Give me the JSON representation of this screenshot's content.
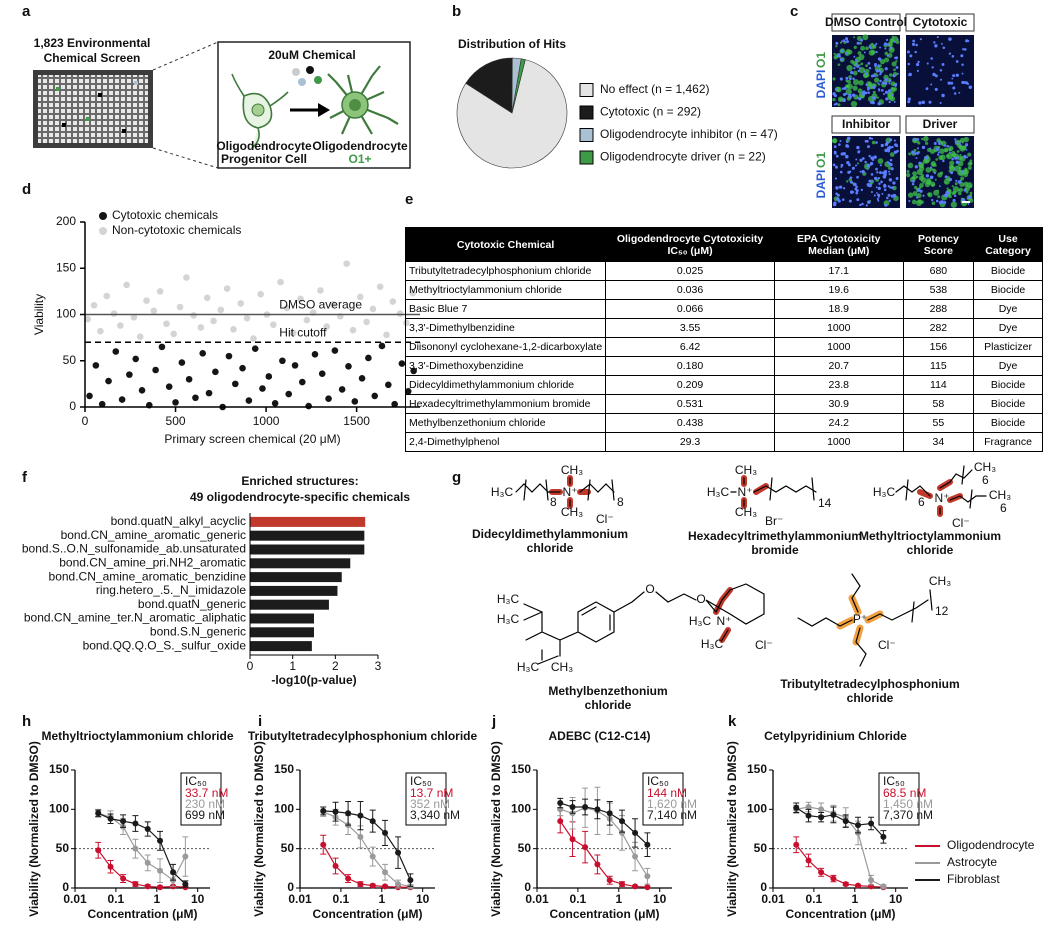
{
  "panel_labels": [
    "a",
    "b",
    "c",
    "d",
    "e",
    "f",
    "g",
    "h",
    "i",
    "j",
    "k"
  ],
  "panel_a": {
    "screen_title": [
      "1,823 Environmental",
      "Chemical Screen"
    ],
    "chemical": "20uM Chemical",
    "progenitor": [
      "Oligodendrocyte",
      "Progenitor Cell"
    ],
    "mature": [
      "Oligodendrocyte",
      "O1+"
    ]
  },
  "panel_c": {
    "headers": [
      "DMSO Control",
      "Cytotoxic",
      "Inhibitor",
      "Driver"
    ],
    "stain_labels": [
      "DAPI",
      "O1"
    ]
  },
  "table": {
    "header": [
      "Cytotoxic Chemical",
      "Oligodendrocyte Cytotoxicity IC₅₀ (μM)",
      "EPA Cytotoxicity Median (μM)",
      "Potency Score",
      "Use Category"
    ],
    "rows": [
      [
        "Tributyltetradecylphosphonium chloride",
        "0.025",
        "17.1",
        "680",
        "Biocide"
      ],
      [
        "Methyltrioctylammonium chloride",
        "0.036",
        "19.6",
        "538",
        "Biocide"
      ],
      [
        "Basic Blue 7",
        "0.066",
        "18.9",
        "288",
        "Dye"
      ],
      [
        "3,3'-Dimethylbenzidine",
        "3.55",
        "1000",
        "282",
        "Dye"
      ],
      [
        "Diisononyl cyclohexane-1,2-dicarboxylate",
        "6.42",
        "1000",
        "156",
        "Plasticizer"
      ],
      [
        "3,3'-Dimethoxybenzidine",
        "0.180",
        "20.7",
        "115",
        "Dye"
      ],
      [
        "Didecyldimethylammonium chloride",
        "0.209",
        "23.8",
        "114",
        "Biocide"
      ],
      [
        "Hexadecyltrimethylammonium bromide",
        "0.531",
        "30.9",
        "58",
        "Biocide"
      ],
      [
        "Methylbenzethonium chloride",
        "0.438",
        "24.2",
        "55",
        "Biocide"
      ],
      [
        "2,4-Dimethylphenol",
        "29.3",
        "1000",
        "34",
        "Fragrance"
      ]
    ]
  },
  "structures": [
    {
      "labels": [
        "H₃C",
        "8",
        "N⁺",
        "CH₃",
        "CH₃",
        "8",
        "Cl⁻"
      ],
      "name": [
        "Didecyldimethylammonium",
        "chloride"
      ]
    },
    {
      "labels": [
        "H₃C",
        "N⁺",
        "CH₃",
        "CH₃",
        "14",
        "Br⁻"
      ],
      "name": [
        "Hexadecyltrimethylammonium",
        "bromide"
      ]
    },
    {
      "labels": [
        "H₃C",
        "6",
        "N⁺",
        "CH₃",
        "6",
        "CH₃",
        "6",
        "Cl⁻"
      ],
      "name": [
        "Methyltrioctylammonium",
        "chloride"
      ]
    },
    {
      "labels": [
        "H₃C",
        "H₃C",
        "H₃C",
        "CH₃",
        "O",
        "O",
        "H₃C",
        "N⁺",
        "H₃C",
        "Cl⁻"
      ],
      "name": [
        "Methylbenzethonium",
        "chloride"
      ]
    },
    {
      "labels": [
        "P⁺",
        "CH₃",
        "12",
        "Cl⁻"
      ],
      "name": [
        "Tributyltetradecylphosphonium",
        "chloride"
      ]
    }
  ],
  "chart_data": [
    {
      "type": "pie",
      "title": "Distribution of Hits",
      "categories": [
        "No effect (n = 1,462)",
        "Cytotoxic (n = 292)",
        "Oligodendrocyte inhibitor (n = 47)",
        "Oligodendrocyte driver (n = 22)"
      ],
      "values": [
        1462,
        292,
        47,
        22
      ],
      "colors": [
        "#e4e4e4",
        "#1c1c1c",
        "#a9c1d3",
        "#3f9a48"
      ]
    },
    {
      "type": "scatter",
      "ylabel": "Viability",
      "xlabel": "Primary screen chemical (20 μM)",
      "xlim": [
        0,
        1850
      ],
      "ylim": [
        0,
        200
      ],
      "xticks": [
        0,
        500,
        1000,
        1500
      ],
      "yticks": [
        0,
        50,
        100,
        150,
        200
      ],
      "ref_lines": [
        {
          "value": 100,
          "label": "DMSO average",
          "style": "solid"
        },
        {
          "value": 70,
          "label": "Hit cutoff",
          "style": "dashed"
        }
      ],
      "series": [
        {
          "name": "Cytotoxic chemicals",
          "color": "#151515",
          "x": [
            25,
            60,
            95,
            130,
            170,
            205,
            245,
            280,
            315,
            355,
            390,
            425,
            465,
            500,
            535,
            575,
            610,
            650,
            685,
            720,
            760,
            795,
            830,
            870,
            905,
            940,
            980,
            1015,
            1050,
            1090,
            1125,
            1160,
            1200,
            1235,
            1270,
            1310,
            1345,
            1380,
            1420,
            1455,
            1490,
            1530,
            1565,
            1600,
            1640,
            1675,
            1710,
            1750,
            1785,
            1815
          ],
          "values": [
            12,
            45,
            3,
            28,
            60,
            8,
            35,
            52,
            18,
            2,
            40,
            65,
            22,
            5,
            48,
            30,
            10,
            58,
            15,
            38,
            0,
            55,
            25,
            42,
            7,
            63,
            20,
            33,
            4,
            50,
            14,
            45,
            27,
            1,
            57,
            36,
            9,
            61,
            19,
            44,
            6,
            31,
            53,
            12,
            66,
            24,
            3,
            47,
            17,
            39
          ]
        },
        {
          "name": "Non-cytotoxic chemicals",
          "color": "#d4d4d4",
          "x": [
            15,
            50,
            85,
            120,
            160,
            195,
            230,
            270,
            305,
            340,
            380,
            415,
            450,
            490,
            525,
            560,
            600,
            640,
            675,
            710,
            750,
            785,
            820,
            860,
            895,
            930,
            970,
            1005,
            1040,
            1080,
            1115,
            1150,
            1190,
            1225,
            1260,
            1300,
            1335,
            1370,
            1410,
            1445,
            1480,
            1520,
            1555,
            1590,
            1630,
            1665,
            1700,
            1740,
            1775,
            1810
          ],
          "values": [
            95,
            110,
            82,
            120,
            101,
            88,
            132,
            97,
            76,
            115,
            104,
            125,
            90,
            79,
            108,
            140,
            99,
            86,
            118,
            93,
            105,
            128,
            84,
            112,
            96,
            74,
            122,
            100,
            89,
            135,
            107,
            80,
            117,
            94,
            102,
            126,
            87,
            111,
            98,
            155,
            83,
            119,
            92,
            106,
            130,
            78,
            114,
            101,
            91,
            123
          ]
        }
      ]
    },
    {
      "type": "bar",
      "orientation": "horizontal",
      "title": [
        "Enriched structures:",
        "49 oligodendrocyte-specific chemicals"
      ],
      "xlabel": "-log10(p-value)",
      "xlim": [
        0,
        3
      ],
      "xticks": [
        0,
        1,
        2,
        3
      ],
      "categories": [
        "bond.quatN_alkyl_acyclic",
        "bond.CN_amine_aromatic_generic",
        "bond.S..O.N_sulfonamide_ab.unsaturated",
        "bond.CN_amine_pri.NH2_aromatic",
        "bond.CN_amine_aromatic_benzidine",
        "ring.hetero_.5._N_imidazole",
        "bond.quatN_generic",
        "bond.CN_amine_ter.N_aromatic_aliphatic",
        "bond.S.N_generic",
        "bond.QQ.Q.O_S._sulfur_oxide"
      ],
      "values": [
        2.7,
        2.68,
        2.68,
        2.35,
        2.15,
        2.05,
        1.85,
        1.5,
        1.5,
        1.45
      ],
      "colors": [
        "#c0392b",
        "#1c1c1c",
        "#1c1c1c",
        "#1c1c1c",
        "#1c1c1c",
        "#1c1c1c",
        "#1c1c1c",
        "#1c1c1c",
        "#1c1c1c",
        "#1c1c1c"
      ]
    },
    {
      "type": "line",
      "title": "Methyltrioctylammonium chloride",
      "xlabel": "Concentration (μM)",
      "ylabel": "Viability (Normalized to DMSO)",
      "log_x": true,
      "xlim": [
        0.01,
        20
      ],
      "xticks": [
        0.01,
        0.1,
        1,
        10
      ],
      "ylim": [
        0,
        150
      ],
      "yticks": [
        0,
        50,
        100,
        150
      ],
      "ref_line": 50,
      "ic50_title": "IC₅₀",
      "ic50_values": [
        "33.7 nM",
        "230 nM",
        "699 nM"
      ],
      "legend": false,
      "x": [
        0.037,
        0.074,
        0.15,
        0.3,
        0.6,
        1.2,
        2.5,
        5
      ],
      "series": [
        {
          "color": "#c8102e",
          "values": [
            48,
            27,
            12,
            5,
            2,
            1,
            2,
            1
          ],
          "errors": [
            10,
            8,
            5,
            3,
            2,
            1,
            1,
            1
          ]
        },
        {
          "color": "#9a9a9a",
          "values": [
            95,
            90,
            78,
            50,
            32,
            22,
            10,
            40
          ],
          "errors": [
            5,
            8,
            10,
            12,
            10,
            15,
            8,
            25
          ]
        },
        {
          "color": "#1a1a1a",
          "values": [
            95,
            88,
            85,
            82,
            75,
            60,
            20,
            5
          ],
          "errors": [
            4,
            6,
            8,
            10,
            9,
            12,
            10,
            4
          ]
        }
      ]
    },
    {
      "type": "line",
      "title": "Tributyltetradecylphosphonium chloride",
      "xlabel": "Concentration (μM)",
      "ylabel": "Viability (Normalized to DMSO)",
      "log_x": true,
      "xlim": [
        0.01,
        20
      ],
      "xticks": [
        0.01,
        0.1,
        1,
        10
      ],
      "ylim": [
        0,
        150
      ],
      "yticks": [
        0,
        50,
        100,
        150
      ],
      "ref_line": 50,
      "ic50_title": "IC₅₀",
      "ic50_values": [
        "13.7 nM",
        "352 nM",
        "3,340 nM"
      ],
      "legend": false,
      "x": [
        0.037,
        0.074,
        0.15,
        0.3,
        0.6,
        1.2,
        2.5,
        5
      ],
      "series": [
        {
          "color": "#c8102e",
          "values": [
            55,
            28,
            12,
            5,
            3,
            2,
            1,
            1
          ],
          "errors": [
            12,
            10,
            5,
            3,
            2,
            1,
            1,
            1
          ]
        },
        {
          "color": "#9a9a9a",
          "values": [
            97,
            90,
            80,
            65,
            40,
            20,
            5,
            2
          ],
          "errors": [
            6,
            10,
            12,
            14,
            12,
            10,
            5,
            2
          ]
        },
        {
          "color": "#1a1a1a",
          "values": [
            98,
            97,
            95,
            92,
            85,
            70,
            45,
            10
          ],
          "errors": [
            5,
            12,
            15,
            18,
            14,
            16,
            20,
            8
          ]
        }
      ]
    },
    {
      "type": "line",
      "title": "ADEBC (C12-C14)",
      "xlabel": "Concentration (μM)",
      "ylabel": "Viability (Normalized to DMSO)",
      "log_x": true,
      "xlim": [
        0.01,
        20
      ],
      "xticks": [
        0.01,
        0.1,
        1,
        10
      ],
      "ylim": [
        0,
        150
      ],
      "yticks": [
        0,
        50,
        100,
        150
      ],
      "ref_line": 50,
      "ic50_title": "IC₅₀",
      "ic50_values": [
        "144 nM",
        "1,620 nM",
        "7,140 nM"
      ],
      "legend": false,
      "x": [
        0.037,
        0.074,
        0.15,
        0.3,
        0.6,
        1.2,
        2.5,
        5
      ],
      "series": [
        {
          "color": "#c8102e",
          "values": [
            85,
            62,
            52,
            30,
            10,
            5,
            2,
            1
          ],
          "errors": [
            15,
            22,
            20,
            12,
            5,
            3,
            1,
            1
          ]
        },
        {
          "color": "#9a9a9a",
          "values": [
            100,
            95,
            102,
            98,
            88,
            70,
            40,
            15
          ],
          "errors": [
            8,
            20,
            25,
            30,
            20,
            22,
            18,
            10
          ]
        },
        {
          "color": "#1a1a1a",
          "values": [
            108,
            103,
            103,
            100,
            95,
            85,
            70,
            55
          ],
          "errors": [
            6,
            8,
            10,
            12,
            15,
            14,
            18,
            15
          ]
        }
      ]
    },
    {
      "type": "line",
      "title": "Cetylpyridinium Chloride",
      "xlabel": "Concentration (μM)",
      "ylabel": "Viability (Normalized to DMSO)",
      "log_x": true,
      "xlim": [
        0.01,
        20
      ],
      "xticks": [
        0.01,
        0.1,
        1,
        10
      ],
      "ylim": [
        0,
        150
      ],
      "yticks": [
        0,
        50,
        100,
        150
      ],
      "ref_line": 50,
      "ic50_title": "IC₅₀",
      "ic50_values": [
        "68.5 nM",
        "1,450 nM",
        "7,370 nM"
      ],
      "legend": true,
      "x": [
        0.037,
        0.074,
        0.15,
        0.3,
        0.6,
        1.2,
        2.5,
        5
      ],
      "series": [
        {
          "name": "Oligodendrocyte",
          "color": "#c8102e",
          "values": [
            55,
            35,
            20,
            12,
            5,
            3,
            2,
            1
          ],
          "errors": [
            10,
            8,
            5,
            4,
            2,
            1,
            1,
            1
          ]
        },
        {
          "name": "Astrocyte",
          "color": "#9a9a9a",
          "values": [
            100,
            103,
            100,
            95,
            90,
            70,
            10,
            2
          ],
          "errors": [
            5,
            6,
            8,
            10,
            12,
            15,
            6,
            2
          ]
        },
        {
          "name": "Fibroblast",
          "color": "#1a1a1a",
          "values": [
            102,
            92,
            90,
            93,
            85,
            80,
            82,
            65
          ],
          "errors": [
            6,
            8,
            6,
            10,
            8,
            10,
            8,
            8
          ]
        }
      ]
    }
  ]
}
